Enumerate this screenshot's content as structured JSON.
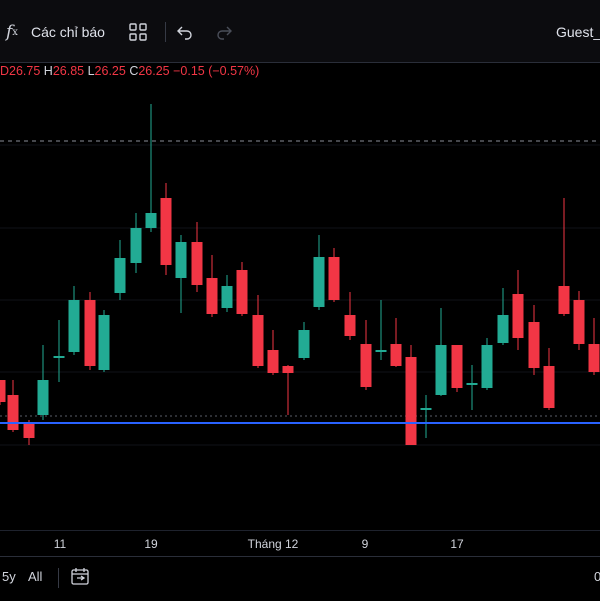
{
  "toolbar": {
    "fx_symbol": "f",
    "fx_sub": "x",
    "indicators_label": "Các chỉ báo",
    "layout_icon": "grid-4-icon",
    "undo_icon": "undo-icon",
    "redo_icon": "redo-icon",
    "user_label": "Guest_"
  },
  "ohlc": {
    "o_value": "D26.75",
    "h_key": "H",
    "h_value": "26.85",
    "l_key": "L",
    "l_value": "26.25",
    "c_key": "C",
    "c_value": "26.25",
    "change": "−0.15 (−0.57%)"
  },
  "colors": {
    "up": "#22ab94",
    "down": "#f23645",
    "hline": "#2962ff",
    "background": "#000000"
  },
  "x_axis": {
    "labels": [
      "11",
      "19",
      "Tháng 12",
      "9",
      "17"
    ]
  },
  "bottom": {
    "range_5y": "5y",
    "range_all": "All",
    "date_range_icon": "calendar-range-icon",
    "right_value": "0"
  }
}
